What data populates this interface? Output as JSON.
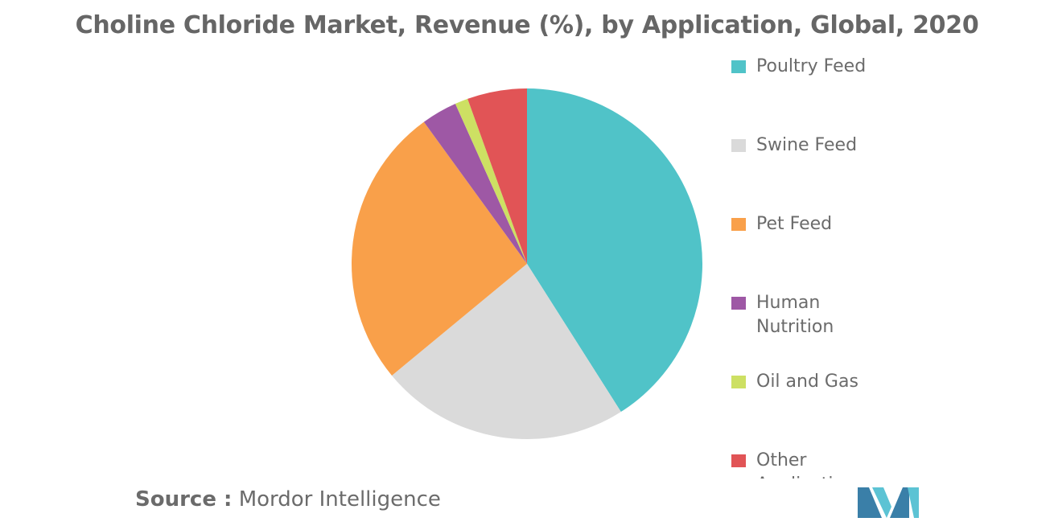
{
  "chart_data": {
    "type": "pie",
    "title": "Choline Chloride Market, Revenue (%), by Application, Global, 2020",
    "slices": [
      {
        "label": "Poultry Feed",
        "value": 41,
        "color": "#50c3c8"
      },
      {
        "label": "Swine Feed",
        "value": 23,
        "color": "#dadada"
      },
      {
        "label": "Pet Feed",
        "value": 26,
        "color": "#f9a04a"
      },
      {
        "label": "Human Nutrition",
        "value": 3.3,
        "color": "#9e58a5"
      },
      {
        "label": "Oil and Gas",
        "value": 1.2,
        "color": "#cde063"
      },
      {
        "label": "Other Applications",
        "value": 5.5,
        "color": "#e15456"
      }
    ],
    "legend": {
      "position": "right",
      "items": [
        {
          "label": "Poultry Feed",
          "color": "#50c3c8"
        },
        {
          "label": "Swine Feed",
          "color": "#dadada"
        },
        {
          "label": "Pet Feed",
          "color": "#f9a04a"
        },
        {
          "label": "Human Nutrition",
          "color": "#9e58a5"
        },
        {
          "label": "Oil and Gas",
          "color": "#cde063"
        },
        {
          "label": "Other Applications",
          "color": "#e15456"
        }
      ]
    }
  },
  "source": {
    "key": "Source :",
    "value": "Mordor Intelligence"
  },
  "logo": {
    "icon": "mordor-intelligence-logo",
    "colors": [
      "#3a7fa8",
      "#5cc3d4"
    ]
  }
}
